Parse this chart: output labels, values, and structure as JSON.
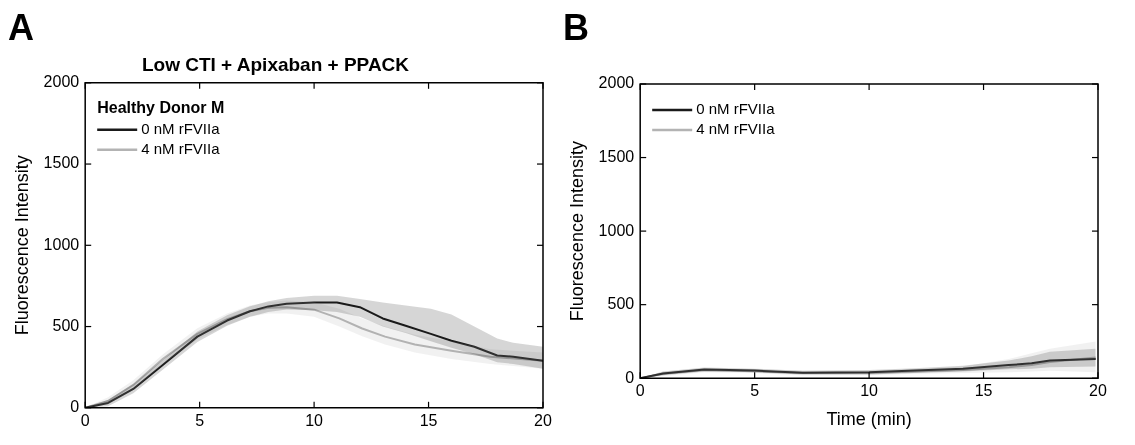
{
  "chart_data": [
    {
      "type": "line",
      "title": "Low CTI + Apixaban + PPACK",
      "ylabel": "Fluorescence Intensity",
      "legend_title": "Healthy Donor M",
      "annotations": [
        "A"
      ],
      "legend": "top left",
      "grid": false,
      "xlim": [
        0,
        20
      ],
      "xticks": [
        0,
        5,
        10,
        15,
        20
      ],
      "ylim": [
        0,
        2000
      ],
      "yticks": [
        0,
        500,
        1000,
        1500,
        2000
      ],
      "series": [
        {
          "name": "0 nM rFVIIa",
          "color": "#1a1a1a",
          "x": [
            0,
            1,
            2.1,
            3.4,
            4.9,
            6.2,
            7.2,
            8,
            8.8,
            10,
            11,
            12,
            13,
            14,
            15.1,
            16,
            17,
            18,
            18.7,
            20
          ],
          "values": [
            0,
            30,
            116,
            265,
            438,
            537,
            594,
            624,
            641,
            648,
            648,
            619,
            550,
            505,
            455,
            413,
            376,
            322,
            314,
            290
          ],
          "lower": [
            0,
            10,
            90,
            235,
            405,
            505,
            560,
            590,
            605,
            600,
            590,
            560,
            500,
            460,
            410,
            370,
            330,
            280,
            270,
            240
          ],
          "upper": [
            0,
            50,
            145,
            295,
            470,
            570,
            625,
            655,
            675,
            690,
            690,
            670,
            648,
            630,
            610,
            574,
            500,
            426,
            400,
            376
          ]
        },
        {
          "name": "4 nM rFVIIa",
          "color": "#b3b3b3",
          "x": [
            0,
            1,
            2.1,
            3.4,
            4.9,
            6.2,
            7.2,
            8,
            8.8,
            10,
            11.1,
            12.1,
            13.1,
            14.4,
            16,
            17.7,
            20
          ],
          "values": [
            0,
            42,
            141,
            302,
            455,
            545,
            595,
            615,
            619,
            604,
            550,
            488,
            438,
            389,
            351,
            314,
            290
          ],
          "lower": [
            0,
            20,
            110,
            270,
            420,
            510,
            560,
            580,
            580,
            560,
            500,
            440,
            390,
            340,
            300,
            270,
            240
          ],
          "upper": [
            0,
            65,
            170,
            330,
            490,
            580,
            630,
            650,
            660,
            650,
            610,
            550,
            500,
            450,
            410,
            360,
            340
          ]
        }
      ]
    },
    {
      "type": "line",
      "xlabel": "Time (min)",
      "ylabel": "Fluorescence Intensity",
      "annotations": [
        "B"
      ],
      "legend": "top left",
      "grid": false,
      "xlim": [
        0,
        20
      ],
      "xticks": [
        0,
        5,
        10,
        15,
        20
      ],
      "ylim": [
        0,
        2000
      ],
      "yticks": [
        0,
        500,
        1000,
        1500,
        2000
      ],
      "series": [
        {
          "name": "0 nM rFVIIa",
          "color": "#1a1a1a",
          "x": [
            0,
            1,
            2.8,
            5,
            7.1,
            10,
            12,
            14.1,
            16.1,
            17.1,
            17.9,
            19.9
          ],
          "values": [
            0,
            32,
            59,
            52,
            37,
            40,
            52,
            64,
            89,
            101,
            121,
            131
          ],
          "lower": [
            0,
            20,
            45,
            40,
            25,
            25,
            35,
            45,
            60,
            65,
            75,
            80
          ],
          "upper": [
            0,
            45,
            72,
            65,
            50,
            55,
            68,
            85,
            120,
            150,
            180,
            200
          ]
        },
        {
          "name": "4 nM rFVIIa",
          "color": "#b3b3b3",
          "x": [
            0,
            1,
            2.8,
            5,
            7.1,
            10,
            12,
            14.1,
            16.1,
            17.1,
            17.9,
            19.9
          ],
          "values": [
            0,
            30,
            55,
            48,
            35,
            35,
            45,
            55,
            75,
            90,
            110,
            140
          ],
          "lower": [
            0,
            15,
            40,
            35,
            20,
            20,
            30,
            35,
            40,
            45,
            50,
            40
          ],
          "upper": [
            0,
            45,
            70,
            62,
            50,
            50,
            60,
            80,
            130,
            170,
            200,
            250
          ]
        }
      ]
    }
  ]
}
